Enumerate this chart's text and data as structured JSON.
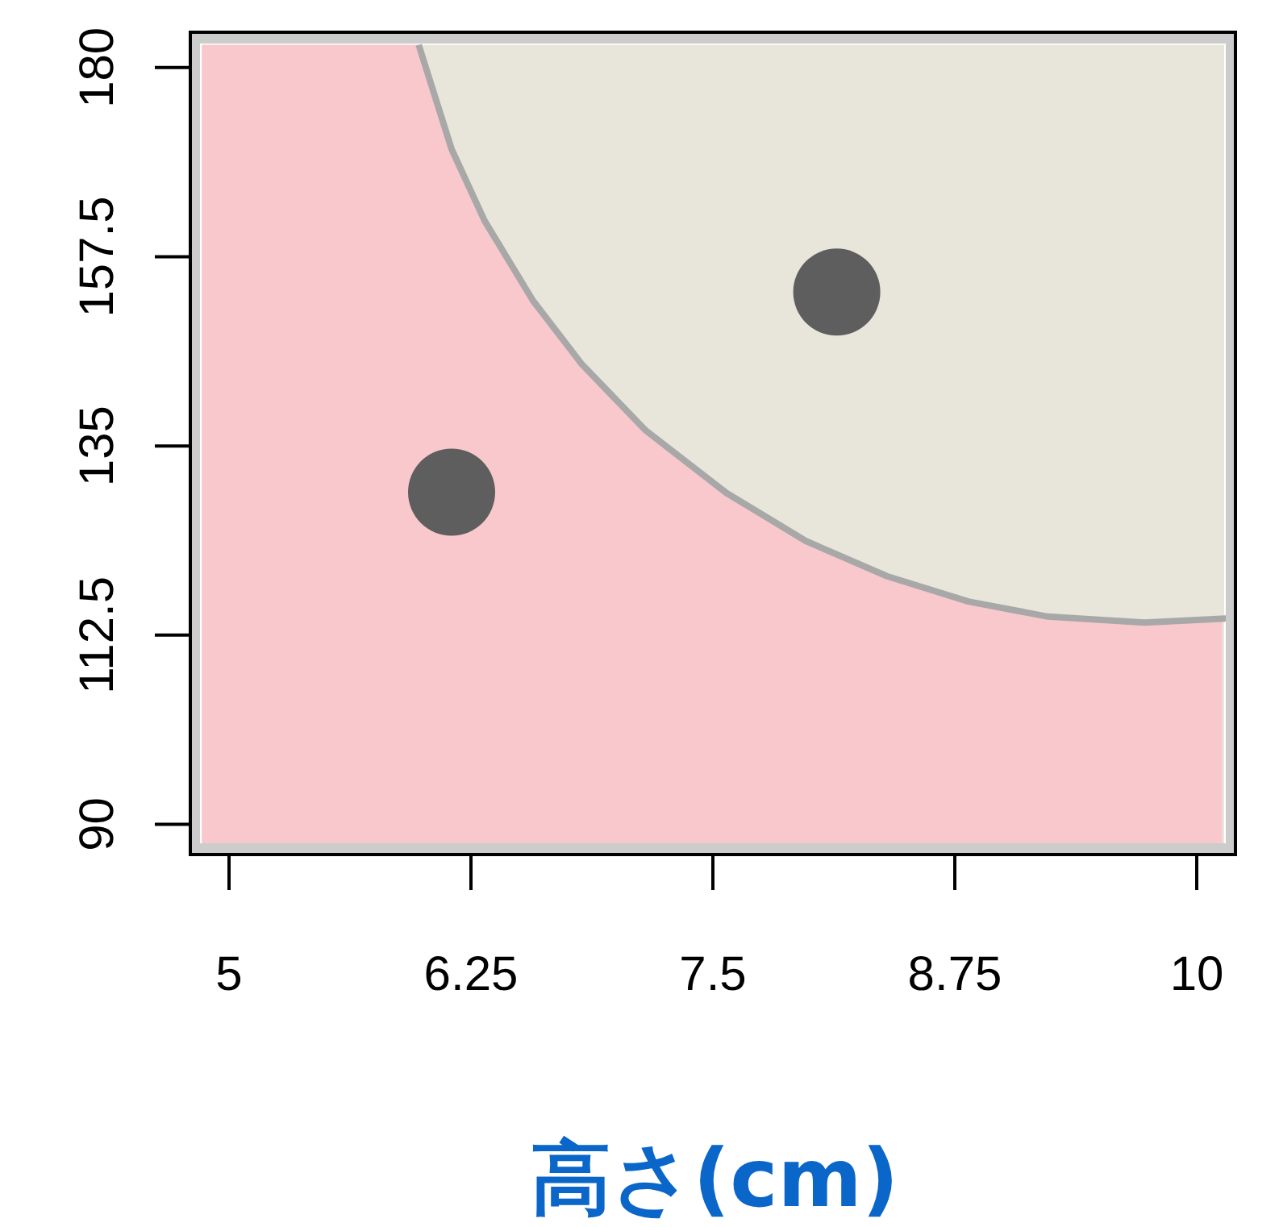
{
  "chart_data": {
    "type": "scatter",
    "xlabel": "**高さ(cm)**",
    "xlim": [
      4.8,
      10.2
    ],
    "ylim": [
      86.4,
      184.2
    ],
    "xticks": [
      5,
      6.25,
      7.5,
      8.75,
      10
    ],
    "yticks": [
      90,
      112.5,
      135,
      157.5,
      180
    ],
    "grid": false,
    "bands": [
      {
        "axis": "y",
        "from": 87.3,
        "to": 182.7,
        "color": "#e8e6da"
      }
    ],
    "series": [
      {
        "type": "area",
        "color": "#f8c8cc",
        "x": [
          4.86,
          5.98,
          6.15,
          6.32,
          6.57,
          6.82,
          7.15,
          7.57,
          7.98,
          8.4,
          8.82,
          9.23,
          9.73,
          10.13
        ],
        "values": [
          182.7,
          182.7,
          170.3,
          161.8,
          152.3,
          144.8,
          136.9,
          129.4,
          123.7,
          119.5,
          116.5,
          114.7,
          114.0,
          114.4
        ]
      },
      {
        "type": "line",
        "color": "#a8a8a8",
        "x": [
          5.98,
          6.15,
          6.32,
          6.57,
          6.82,
          7.15,
          7.57,
          7.98,
          8.4,
          8.82,
          9.23,
          9.73,
          10.17
        ],
        "values": [
          182.7,
          170.3,
          161.8,
          152.3,
          144.8,
          136.9,
          129.4,
          123.7,
          119.5,
          116.5,
          114.7,
          114.0,
          114.5
        ]
      },
      {
        "marker": "circle",
        "color": "#5e5e5e",
        "x": [
          6.15,
          8.14
        ],
        "values": [
          129.5,
          153.3
        ]
      }
    ]
  }
}
